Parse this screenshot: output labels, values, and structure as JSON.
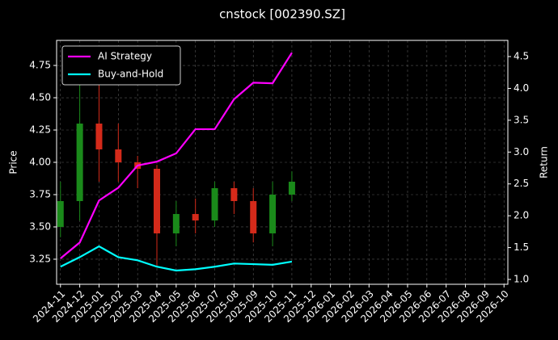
{
  "chart_data": {
    "type": "candlestick",
    "title": "cnstock [002390.SZ]",
    "ylabel": "Price",
    "y2label": "Return",
    "x": [
      "2024-11",
      "2024-12",
      "2025-01",
      "2025-02",
      "2025-03",
      "2025-04",
      "2025-05",
      "2025-06",
      "2025-07",
      "2025-08",
      "2025-09",
      "2025-10",
      "2025-11"
    ],
    "open": [
      3.5,
      3.7,
      4.3,
      4.1,
      4.0,
      3.95,
      3.45,
      3.6,
      3.55,
      3.8,
      3.7,
      3.45,
      3.75
    ],
    "high": [
      3.85,
      4.7,
      4.72,
      4.3,
      4.05,
      3.98,
      3.7,
      3.72,
      3.85,
      3.85,
      3.8,
      3.85,
      3.93
    ],
    "low": [
      3.42,
      3.55,
      3.85,
      3.85,
      3.8,
      3.2,
      3.35,
      3.45,
      3.5,
      3.6,
      3.38,
      3.35,
      3.7
    ],
    "close": [
      3.7,
      4.3,
      4.1,
      4.0,
      3.95,
      3.45,
      3.6,
      3.55,
      3.8,
      3.7,
      3.45,
      3.75,
      3.85
    ],
    "up_color": "#1a8a1a",
    "down_color": "#d42a1a",
    "series": [
      {
        "name": "AI Strategy",
        "color": "#ff00ff",
        "axis": "y2",
        "values": [
          1.33,
          1.58,
          2.24,
          2.44,
          2.79,
          2.85,
          2.98,
          3.36,
          3.36,
          3.83,
          4.09,
          4.08,
          4.56
        ]
      },
      {
        "name": "Buy-and-Hold",
        "color": "#00ffff",
        "axis": "y2",
        "values": [
          1.2,
          1.35,
          1.52,
          1.35,
          1.3,
          1.2,
          1.14,
          1.16,
          1.2,
          1.25,
          1.24,
          1.23,
          1.28
        ]
      }
    ],
    "xlim": [
      "2024-11",
      "2026-10"
    ],
    "xticks": [
      "2024-11",
      "2024-12",
      "2025-01",
      "2025-02",
      "2025-03",
      "2025-04",
      "2025-05",
      "2025-06",
      "2025-07",
      "2025-08",
      "2025-09",
      "2025-10",
      "2025-11",
      "2025-12",
      "2026-01",
      "2026-02",
      "2026-03",
      "2026-04",
      "2026-05",
      "2026-06",
      "2026-07",
      "2026-08",
      "2026-09",
      "2026-10"
    ],
    "ylim": [
      3.056,
      4.944
    ],
    "yticks": [
      3.25,
      {
        "value": 3.5,
        "label": "3.50"
      },
      3.75,
      {
        "value": 4.0,
        "label": "4.00"
      },
      4.25,
      {
        "value": 4.5,
        "label": "4.50"
      },
      4.75
    ],
    "y2lim": [
      0.924,
      4.754
    ],
    "y2ticks": [
      {
        "value": 1.0,
        "label": "1.0"
      },
      1.5,
      {
        "value": 2.0,
        "label": "2.0"
      },
      2.5,
      {
        "value": 3.0,
        "label": "3.0"
      },
      3.5,
      {
        "value": 4.0,
        "label": "4.0"
      },
      4.5
    ],
    "grid": true,
    "legend": "upper left"
  }
}
